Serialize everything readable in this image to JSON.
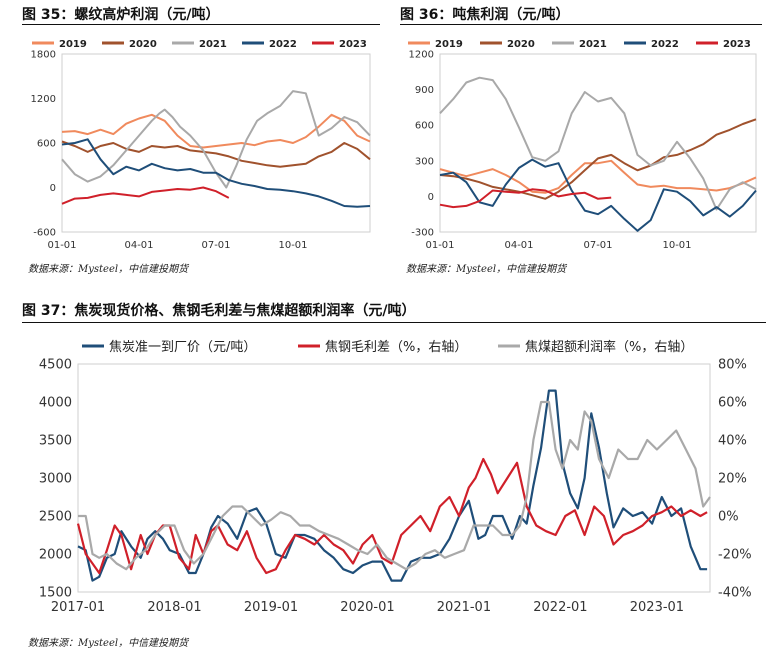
{
  "fig35": {
    "label": "图 35：螺纹高炉利润（元/吨）",
    "source": "数据来源：Mysteel，中信建投期货"
  },
  "fig36": {
    "label": "图 36：吨焦利润（元/吨）",
    "source": "数据来源：Mysteel，中信建投期货"
  },
  "fig37": {
    "label": "图 37：焦炭现货价格、焦钢毛利差与焦煤超额利润率（元/吨）",
    "source": "数据来源：Mysteel，中信建投期货"
  },
  "colors": {
    "2019": "#f08a5d",
    "2020": "#a0522d",
    "2021": "#a9a9a9",
    "2022": "#1f4e79",
    "2023": "#d0202a",
    "red": "#d0202a",
    "gray": "#a9a9a9",
    "navy": "#1f4e79"
  },
  "chart_data": [
    {
      "id": "fig35",
      "type": "line",
      "title": "螺纹高炉利润（元/吨）",
      "legend_position": "top",
      "x_ticks": [
        "01-01",
        "04-01",
        "07-01",
        "10-01"
      ],
      "y_ticks": [
        1800,
        1200,
        600,
        0,
        -600
      ],
      "ylim": [
        -600,
        1800
      ],
      "x_domain": [
        0,
        12
      ],
      "series": [
        {
          "name": "2019",
          "color_key": "2019",
          "x": [
            0,
            0.5,
            1,
            1.5,
            2,
            2.5,
            3,
            3.5,
            4,
            4.5,
            5,
            5.5,
            6,
            6.5,
            7,
            7.5,
            8,
            8.5,
            9,
            9.5,
            10,
            10.5,
            11,
            11.5,
            12
          ],
          "values": [
            750,
            760,
            720,
            780,
            720,
            860,
            930,
            980,
            900,
            700,
            560,
            540,
            560,
            580,
            600,
            570,
            620,
            640,
            600,
            680,
            820,
            980,
            900,
            700,
            620
          ]
        },
        {
          "name": "2020",
          "color_key": "2020",
          "x": [
            0,
            0.5,
            1,
            1.5,
            2,
            2.5,
            3,
            3.5,
            4,
            4.5,
            5,
            5.5,
            6,
            6.5,
            7,
            7.5,
            8,
            8.5,
            9,
            9.5,
            10,
            10.5,
            11,
            11.5,
            12
          ],
          "values": [
            620,
            560,
            480,
            560,
            600,
            520,
            480,
            560,
            540,
            560,
            500,
            480,
            460,
            420,
            360,
            330,
            300,
            280,
            300,
            320,
            420,
            480,
            600,
            520,
            380
          ]
        },
        {
          "name": "2021",
          "color_key": "2021",
          "x": [
            0,
            0.5,
            1,
            1.5,
            2,
            2.5,
            3,
            3.5,
            3.8,
            4,
            4.3,
            4.6,
            5,
            5.5,
            6,
            6.4,
            6.8,
            7.2,
            7.6,
            8,
            8.5,
            9,
            9.5,
            10,
            10.5,
            11,
            11.5,
            12
          ],
          "values": [
            380,
            180,
            80,
            150,
            300,
            500,
            700,
            900,
            1000,
            1050,
            950,
            820,
            700,
            500,
            200,
            0,
            300,
            650,
            900,
            1000,
            1100,
            1300,
            1270,
            700,
            800,
            950,
            880,
            700
          ]
        },
        {
          "name": "2022",
          "color_key": "2022",
          "x": [
            0,
            0.5,
            1,
            1.5,
            2,
            2.5,
            3,
            3.5,
            4,
            4.5,
            5,
            5.5,
            6,
            6.5,
            7,
            7.5,
            8,
            8.5,
            9,
            9.5,
            10,
            10.5,
            11,
            11.5,
            12
          ],
          "values": [
            580,
            600,
            650,
            380,
            180,
            280,
            230,
            320,
            260,
            230,
            250,
            200,
            200,
            100,
            50,
            20,
            -20,
            -30,
            -50,
            -80,
            -120,
            -180,
            -250,
            -260,
            -250
          ]
        },
        {
          "name": "2023",
          "color_key": "2023",
          "x": [
            0,
            0.5,
            1,
            1.5,
            2,
            2.5,
            3,
            3.5,
            4,
            4.5,
            5,
            5.5,
            6,
            6.5
          ],
          "values": [
            -220,
            -150,
            -140,
            -100,
            -80,
            -100,
            -120,
            -60,
            -40,
            -20,
            -30,
            0,
            -50,
            -140
          ]
        }
      ]
    },
    {
      "id": "fig36",
      "type": "line",
      "title": "吨焦利润（元/吨）",
      "legend_position": "top",
      "x_ticks": [
        "01-01",
        "04-01",
        "07-01",
        "10-01"
      ],
      "y_ticks": [
        1200,
        900,
        600,
        300,
        0,
        -300
      ],
      "ylim": [
        -300,
        1200
      ],
      "x_domain": [
        0,
        12
      ],
      "series": [
        {
          "name": "2019",
          "color_key": "2019",
          "x": [
            0,
            0.5,
            1,
            1.5,
            2,
            2.5,
            3,
            3.5,
            4,
            4.5,
            5,
            5.5,
            6,
            6.5,
            7,
            7.5,
            8,
            8.5,
            9,
            9.5,
            10,
            10.5,
            11,
            11.5,
            12
          ],
          "values": [
            230,
            200,
            170,
            200,
            230,
            180,
            120,
            40,
            30,
            70,
            180,
            280,
            280,
            300,
            200,
            100,
            80,
            90,
            70,
            70,
            60,
            50,
            70,
            110,
            160
          ]
        },
        {
          "name": "2020",
          "color_key": "2020",
          "x": [
            0,
            0.5,
            1,
            1.5,
            2,
            2.5,
            3,
            3.5,
            4,
            4.5,
            5,
            5.5,
            6,
            6.5,
            7,
            7.5,
            8,
            8.5,
            9,
            9.5,
            10,
            10.5,
            11,
            11.5,
            12
          ],
          "values": [
            180,
            170,
            150,
            120,
            80,
            60,
            40,
            10,
            -20,
            40,
            120,
            220,
            320,
            350,
            280,
            220,
            260,
            330,
            350,
            390,
            440,
            520,
            560,
            610,
            650
          ]
        },
        {
          "name": "2021",
          "color_key": "2021",
          "x": [
            0,
            0.5,
            1,
            1.5,
            2,
            2.5,
            3,
            3.5,
            4,
            4.5,
            5,
            5.5,
            6,
            6.5,
            7,
            7.5,
            8,
            8.5,
            9,
            9.5,
            10,
            10.5,
            11,
            11.5,
            12
          ],
          "values": [
            700,
            820,
            960,
            1000,
            980,
            820,
            580,
            330,
            300,
            380,
            700,
            880,
            800,
            830,
            700,
            350,
            260,
            300,
            460,
            320,
            150,
            -110,
            60,
            120,
            60
          ]
        },
        {
          "name": "2022",
          "color_key": "2022",
          "x": [
            0,
            0.5,
            1,
            1.5,
            2,
            2.5,
            3,
            3.5,
            4,
            4.5,
            5,
            5.5,
            6,
            6.5,
            7,
            7.5,
            8,
            8.5,
            9,
            9.5,
            10,
            10.5,
            11,
            11.5,
            12
          ],
          "values": [
            180,
            200,
            120,
            -50,
            -80,
            100,
            240,
            310,
            250,
            280,
            50,
            -120,
            -150,
            -80,
            -190,
            -290,
            -200,
            60,
            40,
            -40,
            -160,
            -90,
            -170,
            -80,
            50
          ]
        },
        {
          "name": "2023",
          "color_key": "2023",
          "x": [
            0,
            0.5,
            1,
            1.5,
            2,
            2.5,
            3,
            3.5,
            4,
            4.5,
            5,
            5.5,
            6,
            6.5
          ],
          "values": [
            -70,
            -90,
            -80,
            -40,
            50,
            40,
            30,
            60,
            50,
            0,
            20,
            30,
            -20,
            -10
          ]
        }
      ]
    },
    {
      "id": "fig37",
      "type": "line",
      "title": "焦炭现货价格、焦钢毛利差与焦煤超额利润率（元/吨）",
      "legend_position": "top",
      "x_ticks": [
        "2017-01",
        "2018-01",
        "2019-01",
        "2020-01",
        "2021-01",
        "2022-01",
        "2023-01"
      ],
      "y_ticks": [
        4500,
        4000,
        3500,
        3000,
        2500,
        2000,
        1500
      ],
      "y2_ticks": [
        "80%",
        "60%",
        "40%",
        "20%",
        "0%",
        "-20%",
        "-40%"
      ],
      "ylim": [
        1500,
        4500
      ],
      "y2lim": [
        -40,
        80
      ],
      "x_domain": [
        2017.0,
        2023.55
      ],
      "series": [
        {
          "name": "焦炭准一到厂价（元/吨）",
          "color_key": "navy",
          "axis": "left",
          "x": [
            2017.0,
            2017.08,
            2017.15,
            2017.22,
            2017.3,
            2017.38,
            2017.45,
            2017.55,
            2017.65,
            2017.72,
            2017.8,
            2017.88,
            2017.95,
            2018.05,
            2018.15,
            2018.22,
            2018.3,
            2018.38,
            2018.45,
            2018.55,
            2018.65,
            2018.75,
            2018.85,
            2018.95,
            2019.05,
            2019.15,
            2019.25,
            2019.35,
            2019.45,
            2019.55,
            2019.65,
            2019.75,
            2019.85,
            2019.95,
            2020.05,
            2020.15,
            2020.25,
            2020.35,
            2020.45,
            2020.55,
            2020.65,
            2020.75,
            2020.85,
            2020.95,
            2021.05,
            2021.15,
            2021.22,
            2021.3,
            2021.4,
            2021.5,
            2021.58,
            2021.65,
            2021.72,
            2021.8,
            2021.88,
            2021.95,
            2022.02,
            2022.1,
            2022.18,
            2022.25,
            2022.32,
            2022.4,
            2022.48,
            2022.55,
            2022.65,
            2022.75,
            2022.85,
            2022.95,
            2023.05,
            2023.15,
            2023.25,
            2023.35,
            2023.45,
            2023.52
          ],
          "values": [
            2100,
            2050,
            1650,
            1700,
            1950,
            2000,
            2300,
            2100,
            1950,
            2200,
            2300,
            2200,
            2050,
            2000,
            1750,
            1750,
            2000,
            2350,
            2500,
            2400,
            2200,
            2550,
            2600,
            2400,
            2000,
            1950,
            2250,
            2250,
            2200,
            2050,
            1950,
            1800,
            1750,
            1850,
            1900,
            1900,
            1650,
            1650,
            1900,
            1950,
            1950,
            2000,
            2200,
            2500,
            2700,
            2200,
            2250,
            2500,
            2500,
            2200,
            2500,
            2400,
            2900,
            3400,
            4150,
            4150,
            3200,
            2800,
            2600,
            3000,
            3850,
            3400,
            2800,
            2350,
            2600,
            2500,
            2550,
            2400,
            2750,
            2500,
            2600,
            2100,
            1800,
            1800
          ]
        },
        {
          "name": "焦钢毛利差（%，右轴）",
          "color_key": "red",
          "axis": "right",
          "x": [
            2017.0,
            2017.08,
            2017.15,
            2017.22,
            2017.3,
            2017.38,
            2017.45,
            2017.55,
            2017.65,
            2017.72,
            2017.8,
            2017.88,
            2017.95,
            2018.05,
            2018.15,
            2018.22,
            2018.3,
            2018.38,
            2018.45,
            2018.55,
            2018.65,
            2018.75,
            2018.85,
            2018.95,
            2019.05,
            2019.15,
            2019.25,
            2019.35,
            2019.45,
            2019.55,
            2019.65,
            2019.75,
            2019.85,
            2019.95,
            2020.05,
            2020.15,
            2020.25,
            2020.35,
            2020.45,
            2020.55,
            2020.65,
            2020.75,
            2020.85,
            2020.95,
            2021.05,
            2021.12,
            2021.2,
            2021.28,
            2021.35,
            2021.45,
            2021.55,
            2021.65,
            2021.75,
            2021.85,
            2021.95,
            2022.05,
            2022.15,
            2022.25,
            2022.35,
            2022.45,
            2022.55,
            2022.65,
            2022.75,
            2022.85,
            2022.95,
            2023.05,
            2023.15,
            2023.25,
            2023.35,
            2023.45,
            2023.52
          ],
          "values": [
            -4,
            -20,
            -25,
            -30,
            -18,
            -5,
            -10,
            -28,
            -10,
            -20,
            -10,
            -5,
            -5,
            -22,
            -28,
            -10,
            -20,
            -8,
            -5,
            -15,
            -18,
            -8,
            -22,
            -30,
            -28,
            -18,
            -10,
            -12,
            -15,
            -10,
            -15,
            -18,
            -25,
            -15,
            -10,
            -22,
            -25,
            -10,
            -5,
            0,
            -8,
            5,
            10,
            0,
            15,
            20,
            30,
            22,
            12,
            20,
            28,
            5,
            -5,
            -8,
            -10,
            0,
            3,
            -10,
            5,
            0,
            -15,
            -10,
            -8,
            -5,
            0,
            2,
            5,
            0,
            3,
            0,
            2
          ]
        },
        {
          "name": "焦煤超额利润率（%，右轴）",
          "color_key": "gray",
          "axis": "right",
          "x": [
            2017.0,
            2017.08,
            2017.15,
            2017.22,
            2017.3,
            2017.4,
            2017.5,
            2017.6,
            2017.7,
            2017.8,
            2017.9,
            2018.0,
            2018.1,
            2018.2,
            2018.3,
            2018.4,
            2018.5,
            2018.6,
            2018.7,
            2018.8,
            2018.9,
            2019.0,
            2019.1,
            2019.2,
            2019.3,
            2019.4,
            2019.5,
            2019.6,
            2019.7,
            2019.8,
            2019.9,
            2020.0,
            2020.1,
            2020.2,
            2020.3,
            2020.4,
            2020.5,
            2020.6,
            2020.7,
            2020.8,
            2020.9,
            2021.0,
            2021.1,
            2021.2,
            2021.3,
            2021.4,
            2021.5,
            2021.58,
            2021.65,
            2021.72,
            2021.8,
            2021.88,
            2021.95,
            2022.02,
            2022.1,
            2022.18,
            2022.25,
            2022.32,
            2022.4,
            2022.5,
            2022.6,
            2022.7,
            2022.8,
            2022.9,
            2023.0,
            2023.1,
            2023.2,
            2023.3,
            2023.4,
            2023.48,
            2023.55
          ],
          "values": [
            0,
            0,
            -20,
            -22,
            -20,
            -25,
            -28,
            -22,
            -18,
            -10,
            -5,
            -5,
            -18,
            -25,
            -20,
            -10,
            0,
            5,
            5,
            0,
            -5,
            -2,
            2,
            0,
            -5,
            -5,
            -8,
            -10,
            -12,
            -15,
            -18,
            -20,
            -15,
            -22,
            -25,
            -28,
            -25,
            -20,
            -18,
            -22,
            -20,
            -18,
            -5,
            -5,
            -5,
            -10,
            -10,
            -5,
            10,
            40,
            60,
            60,
            35,
            25,
            40,
            35,
            55,
            50,
            30,
            20,
            35,
            30,
            30,
            40,
            35,
            40,
            45,
            35,
            25,
            5,
            10
          ]
        }
      ]
    }
  ]
}
